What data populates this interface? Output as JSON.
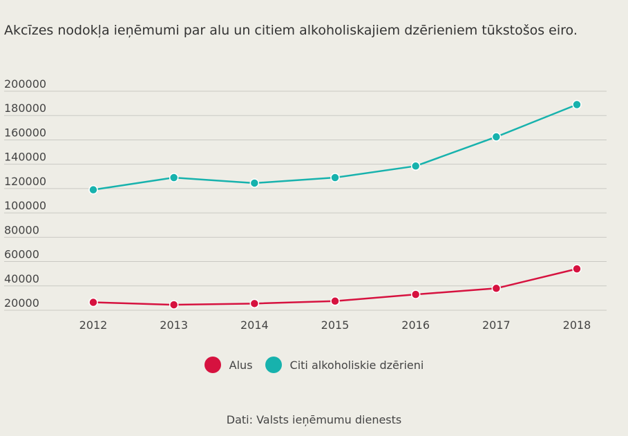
{
  "chart_data": {
    "type": "line",
    "title": "Akcīzes nodokļa ieņēmumi par alu un citiem alkoholiskajiem dzērieniem tūkstošos eiro.",
    "x": [
      "2012",
      "2013",
      "2014",
      "2015",
      "2016",
      "2017",
      "2018"
    ],
    "yticks": [
      "200000",
      "180000",
      "160000",
      "140000",
      "120000",
      "100000",
      "80000",
      "60000",
      "40000",
      "20000"
    ],
    "ylim": [
      20000,
      200000
    ],
    "grid": true,
    "legend_position": "bottom",
    "series": [
      {
        "name": "Alus",
        "color": "#d6123f",
        "values": [
          26500,
          24500,
          25500,
          27500,
          33000,
          38000,
          54000
        ]
      },
      {
        "name": "Citi alkoholiskie dzērieni",
        "color": "#17b2ad",
        "values": [
          119000,
          129000,
          124500,
          129000,
          138500,
          162500,
          189000
        ]
      }
    ],
    "source": "Dati: Valsts ieņēmumu dienests"
  }
}
